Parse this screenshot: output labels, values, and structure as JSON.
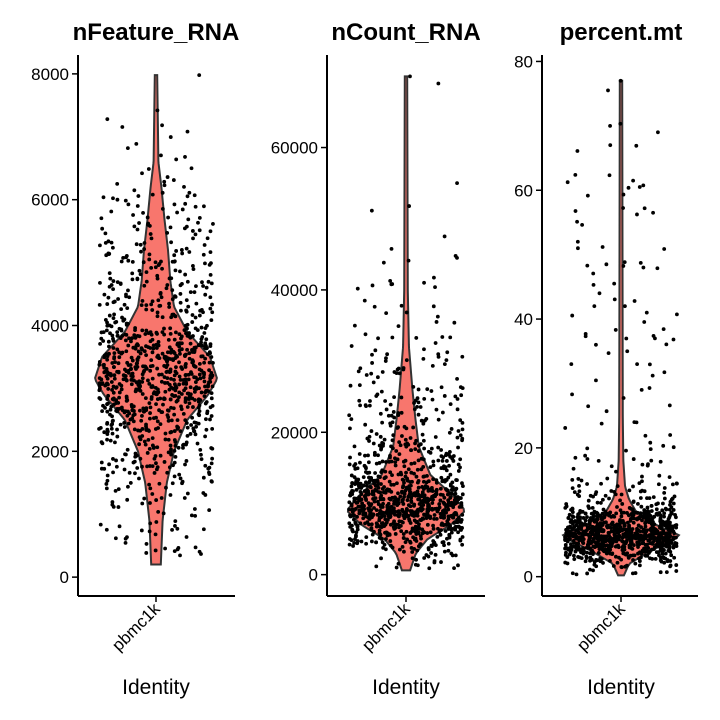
{
  "chart_data": [
    {
      "type": "violin",
      "title": "nFeature_RNA",
      "xlabel": "Identity",
      "ylabel": "",
      "categories": [
        "pbmc1k"
      ],
      "ylim": [
        -300,
        8300
      ],
      "yticks": [
        0,
        2000,
        4000,
        6000,
        8000
      ],
      "ytick_labels": [
        "0",
        "2000",
        "4000",
        "6000",
        "8000"
      ],
      "data_min": 200,
      "data_max": 7980,
      "mode": 3150,
      "n_points": 1000,
      "violin_color": "#F8766D",
      "density_profile": [
        [
          200,
          0.06
        ],
        [
          900,
          0.09
        ],
        [
          1500,
          0.16
        ],
        [
          2000,
          0.28
        ],
        [
          2500,
          0.5
        ],
        [
          2900,
          0.85
        ],
        [
          3150,
          1.0
        ],
        [
          3500,
          0.88
        ],
        [
          3900,
          0.5
        ],
        [
          4300,
          0.28
        ],
        [
          4700,
          0.22
        ],
        [
          5200,
          0.18
        ],
        [
          5700,
          0.12
        ],
        [
          6200,
          0.07
        ],
        [
          6600,
          0.02
        ],
        [
          7980,
          0.0
        ]
      ],
      "outliers": [
        7980,
        7420,
        7280,
        6820,
        6640,
        6500,
        6420
      ]
    },
    {
      "type": "violin",
      "title": "nCount_RNA",
      "xlabel": "Identity",
      "ylabel": "",
      "categories": [
        "pbmc1k"
      ],
      "ylim": [
        -3000,
        73000
      ],
      "yticks": [
        0,
        20000,
        40000,
        60000
      ],
      "ytick_labels": [
        "0",
        "20000",
        "40000",
        "60000"
      ],
      "data_min": 600,
      "data_max": 70000,
      "mode": 9000,
      "n_points": 1000,
      "violin_color": "#F8766D",
      "density_profile": [
        [
          600,
          0.05
        ],
        [
          3000,
          0.15
        ],
        [
          5000,
          0.35
        ],
        [
          7000,
          0.75
        ],
        [
          9000,
          1.0
        ],
        [
          11000,
          0.8
        ],
        [
          14000,
          0.4
        ],
        [
          18000,
          0.2
        ],
        [
          22000,
          0.14
        ],
        [
          26000,
          0.09
        ],
        [
          29000,
          0.06
        ],
        [
          32000,
          0.03
        ],
        [
          40000,
          0.01
        ],
        [
          70000,
          0.0
        ]
      ],
      "outliers": [
        70000,
        69000,
        55000,
        44500,
        41000,
        38500,
        35500
      ]
    },
    {
      "type": "violin",
      "title": "percent.mt",
      "xlabel": "Identity",
      "ylabel": "",
      "categories": [
        "pbmc1k"
      ],
      "ylim": [
        -3,
        81
      ],
      "yticks": [
        0,
        20,
        40,
        60,
        80
      ],
      "ytick_labels": [
        "0",
        "20",
        "40",
        "60",
        "80"
      ],
      "data_min": 0.2,
      "data_max": 77,
      "mode": 6.5,
      "n_points": 1000,
      "violin_color": "#F8766D",
      "density_profile": [
        [
          0.2,
          0.03
        ],
        [
          2,
          0.12
        ],
        [
          4,
          0.5
        ],
        [
          6,
          0.95
        ],
        [
          6.5,
          1.0
        ],
        [
          8,
          0.6
        ],
        [
          10,
          0.25
        ],
        [
          12,
          0.12
        ],
        [
          14,
          0.05
        ],
        [
          18,
          0.02
        ],
        [
          25,
          0.01
        ],
        [
          77,
          0.0
        ]
      ],
      "outliers": [
        77,
        75.5,
        69,
        67,
        61.5,
        60.5,
        52,
        51,
        48.5,
        48,
        44,
        42,
        42,
        41,
        37,
        35,
        33,
        33,
        24,
        22
      ]
    }
  ]
}
